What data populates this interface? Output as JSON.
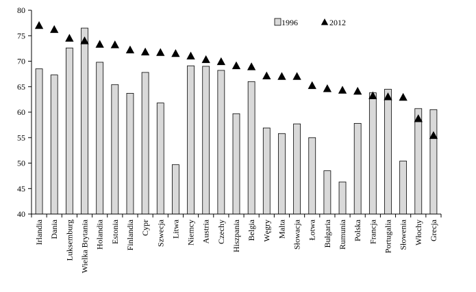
{
  "chart_data": {
    "type": "bar",
    "title": "",
    "xlabel": "",
    "ylabel": "",
    "ylim": [
      40,
      80
    ],
    "yticks": [
      40,
      45,
      50,
      55,
      60,
      65,
      70,
      75,
      80
    ],
    "grid": false,
    "legend_position": "top-right",
    "categories": [
      "Irlandia",
      "Dania",
      "Luksemburg",
      "Wielka Brytania",
      "Holandia",
      "Estonia",
      "Finlandia",
      "Cypr",
      "Szwecja",
      "Litwa",
      "Niemcy",
      "Austria",
      "Czechy",
      "Hiszpania",
      "Belgia",
      "Węgry",
      "Malta",
      "Słowacja",
      "Łotwa",
      "Bułgaria",
      "Rumunia",
      "Polska",
      "Francja",
      "Portugalia",
      "Słowenia",
      "Włochy",
      "Grecja"
    ],
    "series": [
      {
        "name": "1996",
        "kind": "bar",
        "color": "#d9d9d9",
        "values": [
          68.5,
          67.3,
          72.6,
          76.5,
          69.8,
          65.4,
          63.7,
          67.8,
          61.8,
          49.7,
          69.1,
          69.0,
          68.2,
          59.7,
          66.0,
          56.9,
          55.8,
          57.7,
          55.0,
          48.5,
          46.3,
          57.8,
          63.8,
          64.5,
          50.4,
          60.7,
          60.5
        ]
      },
      {
        "name": "2012",
        "kind": "marker",
        "marker": "triangle",
        "color": "#000000",
        "values": [
          77.0,
          76.2,
          74.5,
          74.0,
          73.3,
          73.2,
          72.2,
          71.8,
          71.7,
          71.5,
          71.0,
          70.3,
          69.9,
          69.1,
          68.9,
          67.1,
          67.0,
          67.0,
          65.2,
          64.6,
          64.3,
          64.1,
          63.2,
          63.0,
          62.9,
          58.7,
          55.4
        ]
      }
    ]
  }
}
